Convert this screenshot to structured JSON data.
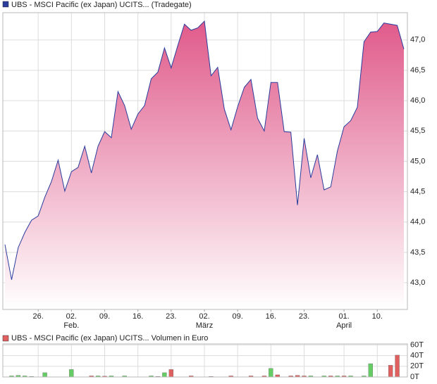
{
  "chart_data": [
    {
      "type": "area",
      "title": "UBS - MSCI Pacific (ex Japan) UCITS... (Tradegate)",
      "color": "#2a3c9c",
      "fill_top": "#e05a8a",
      "fill_bottom": "#ffffff",
      "grid": true,
      "categories": [
        null,
        null,
        null,
        null,
        null,
        "26.",
        null,
        null,
        null,
        null,
        "02.",
        null,
        null,
        null,
        null,
        "09.",
        null,
        null,
        null,
        null,
        "16.",
        null,
        null,
        null,
        null,
        "23.",
        null,
        null,
        null,
        null,
        "02.",
        null,
        null,
        null,
        null,
        "09.",
        null,
        null,
        null,
        null,
        "16.",
        null,
        null,
        null,
        null,
        "23.",
        null,
        null,
        null,
        null,
        null,
        "01.",
        null,
        null,
        null,
        null,
        "10.",
        null,
        null,
        null,
        null
      ],
      "category_sublabels": [
        null,
        null,
        null,
        null,
        null,
        null,
        null,
        null,
        null,
        null,
        "Feb.",
        null,
        null,
        null,
        null,
        null,
        null,
        null,
        null,
        null,
        null,
        null,
        null,
        null,
        null,
        null,
        null,
        null,
        null,
        null,
        "März",
        null,
        null,
        null,
        null,
        null,
        null,
        null,
        null,
        null,
        null,
        null,
        null,
        null,
        null,
        null,
        null,
        null,
        null,
        null,
        null,
        "April",
        null,
        null,
        null,
        null,
        null,
        null,
        null,
        null,
        null
      ],
      "values": [
        43.63,
        43.05,
        43.58,
        43.83,
        44.03,
        44.1,
        44.41,
        44.67,
        45.02,
        44.51,
        44.83,
        44.9,
        45.25,
        44.81,
        45.25,
        45.49,
        45.39,
        46.15,
        45.92,
        45.53,
        45.78,
        45.92,
        46.36,
        46.47,
        46.87,
        46.54,
        46.91,
        47.26,
        47.16,
        47.2,
        47.31,
        46.41,
        46.55,
        45.86,
        45.52,
        45.9,
        46.22,
        46.35,
        45.71,
        45.5,
        46.3,
        46.3,
        45.49,
        45.48,
        44.28,
        45.38,
        44.73,
        45.11,
        44.53,
        44.58,
        45.17,
        45.57,
        45.67,
        45.89,
        46.97,
        47.13,
        47.14,
        47.28,
        47.26,
        47.24,
        46.85
      ],
      "ylim": [
        42.56,
        47.45
      ],
      "yticks": [
        {
          "value": 43,
          "label": "43,0"
        },
        {
          "value": 43.5,
          "label": "43,5"
        },
        {
          "value": 44,
          "label": "44,0"
        },
        {
          "value": 44.5,
          "label": "44,5"
        },
        {
          "value": 45,
          "label": "45,0"
        },
        {
          "value": 45.5,
          "label": "45,5"
        },
        {
          "value": 46,
          "label": "46,0"
        },
        {
          "value": 46.5,
          "label": "46,5"
        },
        {
          "value": 47,
          "label": "47,0"
        }
      ]
    },
    {
      "type": "bar",
      "title": "UBS - MSCI Pacific (ex Japan) UCITS... Volumen in Euro",
      "color": "#e06060",
      "grid": true,
      "values": [
        null,
        2000,
        3000,
        2000,
        1000,
        null,
        8000,
        null,
        null,
        null,
        14000,
        null,
        null,
        2000,
        2000,
        1500,
        2000,
        null,
        2000,
        null,
        null,
        null,
        2000,
        1000,
        8000,
        14000,
        null,
        null,
        2000,
        null,
        null,
        1000,
        null,
        null,
        2000,
        null,
        null,
        2000,
        null,
        2000,
        16000,
        4000,
        null,
        2000,
        3000,
        2000,
        2000,
        null,
        2000,
        2000,
        2000,
        2000,
        2000,
        null,
        2000,
        25000,
        null,
        null,
        22000,
        41000,
        null
      ],
      "bar_colors": [
        null,
        "#66cc66",
        "#66cc66",
        "#66cc66",
        "#66cc66",
        null,
        "#66cc66",
        null,
        null,
        null,
        "#66cc66",
        null,
        null,
        "#e06060",
        "#66cc66",
        "#e06060",
        "#66cc66",
        null,
        "#66cc66",
        null,
        null,
        null,
        "#66cc66",
        "#e06060",
        "#66cc66",
        "#e06060",
        null,
        null,
        "#e06060",
        null,
        null,
        "#e06060",
        null,
        null,
        "#e06060",
        null,
        null,
        "#e06060",
        null,
        "#e06060",
        "#66cc66",
        "#e06060",
        null,
        "#e06060",
        "#e06060",
        "#e06060",
        "#66cc66",
        null,
        "#66cc66",
        "#e06060",
        "#66cc66",
        "#e06060",
        "#66cc66",
        null,
        "#66cc66",
        "#66cc66",
        null,
        null,
        "#e06060",
        "#e06060",
        null
      ],
      "ylim": [
        0,
        62000
      ],
      "yticks": [
        {
          "value": 0,
          "label": "0T"
        },
        {
          "value": 20000,
          "label": "20T"
        },
        {
          "value": 40000,
          "label": "40T"
        },
        {
          "value": 60000,
          "label": "60T"
        }
      ]
    }
  ]
}
